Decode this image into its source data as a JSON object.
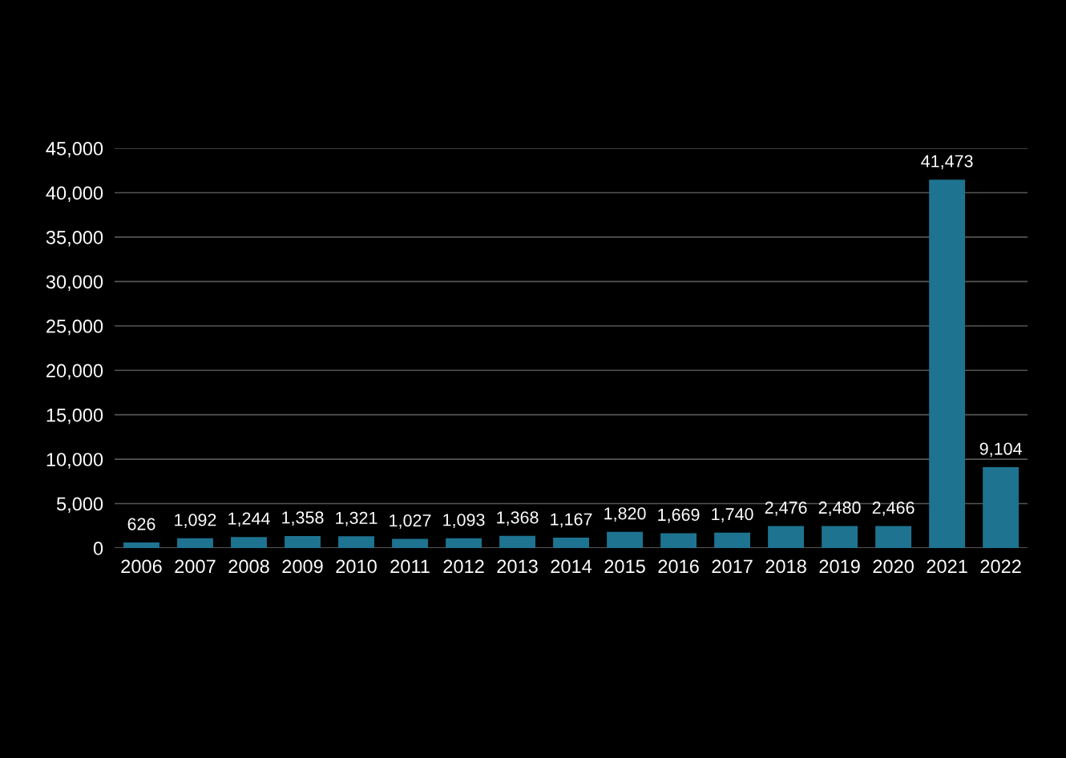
{
  "chart_data": {
    "type": "bar",
    "categories": [
      "2006",
      "2007",
      "2008",
      "2009",
      "2010",
      "2011",
      "2012",
      "2013",
      "2014",
      "2015",
      "2016",
      "2017",
      "2018",
      "2019",
      "2020",
      "2021",
      "2022"
    ],
    "values": [
      626,
      1092,
      1244,
      1358,
      1321,
      1027,
      1093,
      1368,
      1167,
      1820,
      1669,
      1740,
      2476,
      2480,
      2466,
      41473,
      9104
    ],
    "color": "#1e7390",
    "ylim": [
      0,
      45000
    ],
    "yticks": [
      {
        "value": 0,
        "label": "0"
      },
      {
        "value": 5000,
        "label": "5,000"
      },
      {
        "value": 10000,
        "label": "10,000"
      },
      {
        "value": 15000,
        "label": "15,000"
      },
      {
        "value": 20000,
        "label": "20,000"
      },
      {
        "value": 25000,
        "label": "25,000"
      },
      {
        "value": 30000,
        "label": "30,000"
      },
      {
        "value": 35000,
        "label": "35,000"
      },
      {
        "value": 40000,
        "label": "40,000"
      },
      {
        "value": 45000,
        "label": "45,000"
      }
    ],
    "value_labels": [
      "626",
      "1,092",
      "1,244",
      "1,358",
      "1,321",
      "1,027",
      "1,093",
      "1,368",
      "1,167",
      "1,820",
      "1,669",
      "1,740",
      "2,476",
      "2,480",
      "2,466",
      "41,473",
      "9,104"
    ],
    "grid": "y"
  }
}
